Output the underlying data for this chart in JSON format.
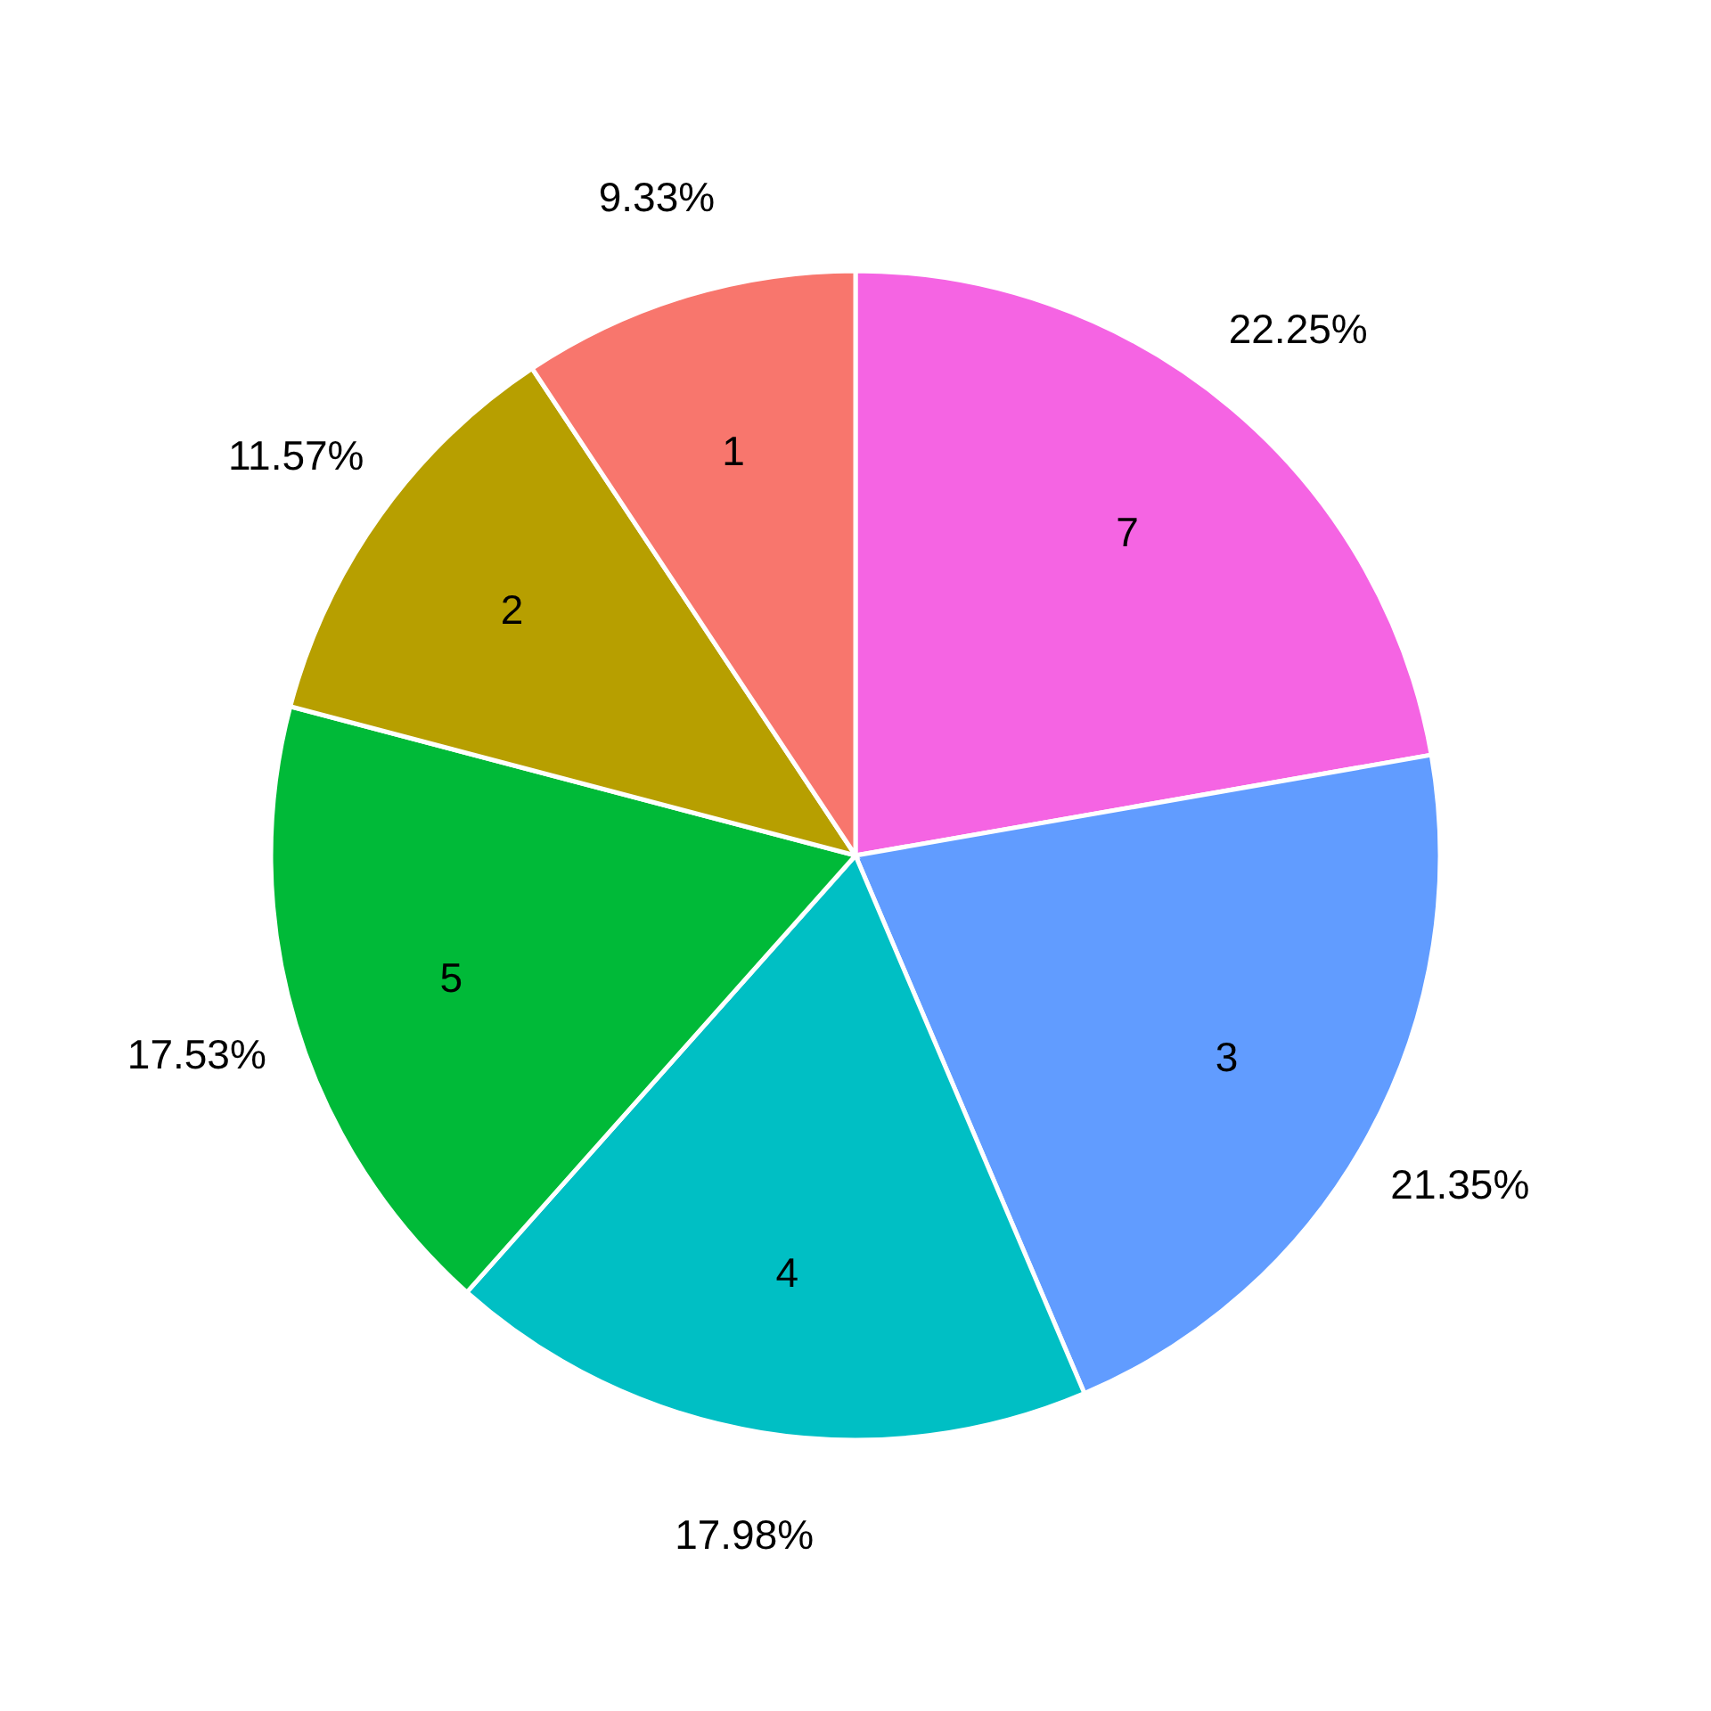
{
  "chart_data": {
    "type": "pie",
    "categories": [
      "7",
      "3",
      "4",
      "5",
      "2",
      "1"
    ],
    "values": [
      22.25,
      21.35,
      17.98,
      17.53,
      11.57,
      9.33
    ],
    "colors": [
      "#f564e3",
      "#619cff",
      "#00bfc4",
      "#00ba38",
      "#b79f00",
      "#f8766d"
    ],
    "value_labels": [
      "22.25%",
      "21.35%",
      "17.98%",
      "17.53%",
      "11.57%",
      "9.33%"
    ]
  }
}
